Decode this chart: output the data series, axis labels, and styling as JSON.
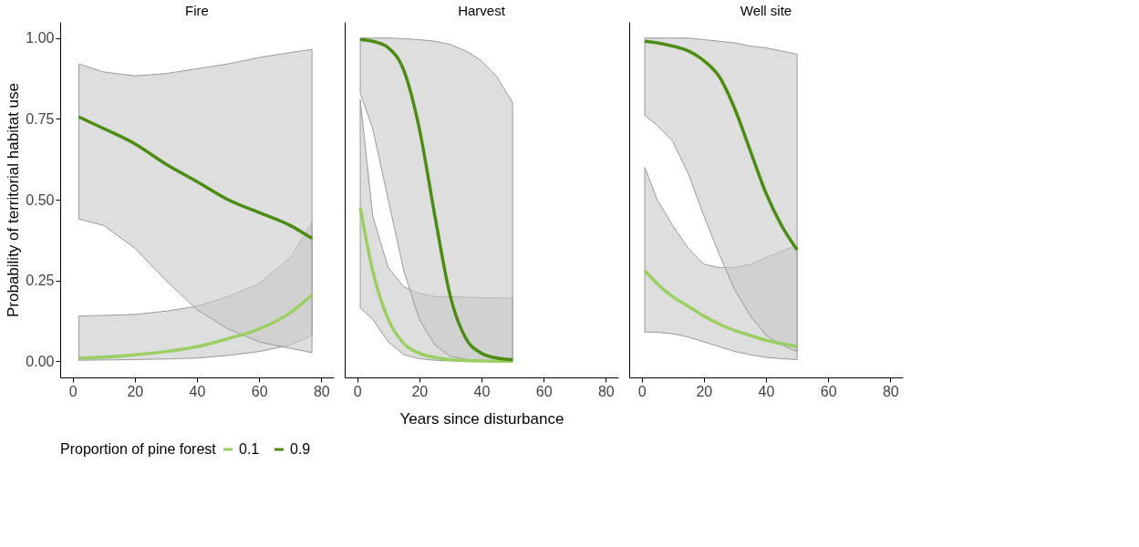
{
  "chart_data": [
    {
      "type": "line",
      "title": "Fire",
      "ylabel": "Probability of territorial habitat use",
      "xlim": [
        -4,
        84
      ],
      "xticks": [
        0,
        20,
        40,
        60,
        80
      ],
      "ylim": [
        -0.05,
        1.05
      ],
      "yticks": [
        {
          "value": 0,
          "label": "0.00"
        },
        {
          "value": 0.25,
          "label": "0.25"
        },
        {
          "value": 0.5,
          "label": "0.50"
        },
        {
          "value": 0.75,
          "label": "0.75"
        },
        {
          "value": 1,
          "label": "1.00"
        }
      ],
      "legend_title": "Proportion of pine forest",
      "grid": false,
      "legend": "bottom",
      "series": [
        {
          "name": "0.1",
          "color": "#9ccf63",
          "x": [
            2,
            10,
            20,
            30,
            40,
            50,
            60,
            70,
            77
          ],
          "values": [
            0.01,
            0.013,
            0.02,
            0.03,
            0.045,
            0.07,
            0.1,
            0.15,
            0.205
          ],
          "lower": [
            0.003,
            0.004,
            0.005,
            0.007,
            0.01,
            0.018,
            0.03,
            0.05,
            0.08
          ],
          "upper": [
            0.14,
            0.142,
            0.145,
            0.155,
            0.17,
            0.2,
            0.24,
            0.32,
            0.43
          ]
        },
        {
          "name": "0.9",
          "color": "#4d8c12",
          "x": [
            2,
            10,
            20,
            30,
            40,
            50,
            60,
            70,
            77
          ],
          "values": [
            0.756,
            0.72,
            0.673,
            0.61,
            0.556,
            0.5,
            0.46,
            0.42,
            0.38
          ],
          "lower": [
            0.44,
            0.42,
            0.35,
            0.25,
            0.16,
            0.1,
            0.06,
            0.04,
            0.027
          ],
          "upper": [
            0.92,
            0.895,
            0.883,
            0.89,
            0.905,
            0.92,
            0.94,
            0.955,
            0.965
          ]
        }
      ]
    },
    {
      "type": "line",
      "title": "Harvest",
      "xlabel": "Years since disturbance",
      "xlim": [
        -4,
        84
      ],
      "xticks": [
        0,
        20,
        40,
        60,
        80
      ],
      "ylim": [
        -0.05,
        1.05
      ],
      "tick_labels": "x",
      "grid": false,
      "legend": "bottom",
      "series": [
        {
          "name": "0.1",
          "color": "#9ccf63",
          "x": [
            1,
            5,
            10,
            15,
            20,
            25,
            30,
            35,
            40,
            45,
            50
          ],
          "values": [
            0.475,
            0.28,
            0.13,
            0.055,
            0.025,
            0.012,
            0.005,
            0.002,
            0.001,
            0,
            0
          ],
          "lower": [
            0.165,
            0.13,
            0.06,
            0.02,
            0.008,
            0.003,
            0.001,
            0,
            0,
            0,
            0
          ],
          "upper": [
            0.81,
            0.45,
            0.29,
            0.23,
            0.21,
            0.2,
            0.2,
            0.198,
            0.197,
            0.196,
            0.195
          ]
        },
        {
          "name": "0.9",
          "color": "#4d8c12",
          "x": [
            1,
            5,
            10,
            15,
            20,
            25,
            30,
            35,
            40,
            45,
            50
          ],
          "values": [
            0.995,
            0.99,
            0.97,
            0.9,
            0.72,
            0.45,
            0.2,
            0.07,
            0.025,
            0.01,
            0.005
          ],
          "lower": [
            0.83,
            0.72,
            0.5,
            0.28,
            0.13,
            0.05,
            0.015,
            0.006,
            0.003,
            0.001,
            0
          ],
          "upper": [
            1,
            1,
            1,
            0.998,
            0.995,
            0.99,
            0.98,
            0.96,
            0.93,
            0.88,
            0.8
          ]
        }
      ]
    },
    {
      "type": "line",
      "title": "Well site",
      "xlim": [
        -4,
        84
      ],
      "xticks": [
        0,
        20,
        40,
        60,
        80
      ],
      "ylim": [
        -0.05,
        1.05
      ],
      "tick_labels": "x",
      "grid": false,
      "legend": "bottom",
      "series": [
        {
          "name": "0.1",
          "color": "#9ccf63",
          "x": [
            1,
            5,
            10,
            15,
            20,
            25,
            30,
            35,
            40,
            45,
            50
          ],
          "values": [
            0.28,
            0.24,
            0.2,
            0.17,
            0.14,
            0.115,
            0.095,
            0.08,
            0.065,
            0.055,
            0.045
          ],
          "lower": [
            0.09,
            0.09,
            0.085,
            0.075,
            0.06,
            0.045,
            0.03,
            0.02,
            0.012,
            0.008,
            0.005
          ],
          "upper": [
            0.6,
            0.5,
            0.42,
            0.35,
            0.3,
            0.29,
            0.29,
            0.3,
            0.32,
            0.34,
            0.36
          ]
        },
        {
          "name": "0.9",
          "color": "#4d8c12",
          "x": [
            1,
            5,
            10,
            15,
            20,
            25,
            30,
            35,
            40,
            45,
            50
          ],
          "values": [
            0.99,
            0.985,
            0.975,
            0.96,
            0.93,
            0.88,
            0.78,
            0.65,
            0.52,
            0.42,
            0.345
          ],
          "lower": [
            0.76,
            0.73,
            0.68,
            0.58,
            0.45,
            0.33,
            0.22,
            0.14,
            0.08,
            0.05,
            0.03
          ],
          "upper": [
            1,
            1,
            1,
            1,
            0.995,
            0.99,
            0.985,
            0.975,
            0.97,
            0.96,
            0.95
          ]
        }
      ]
    }
  ]
}
